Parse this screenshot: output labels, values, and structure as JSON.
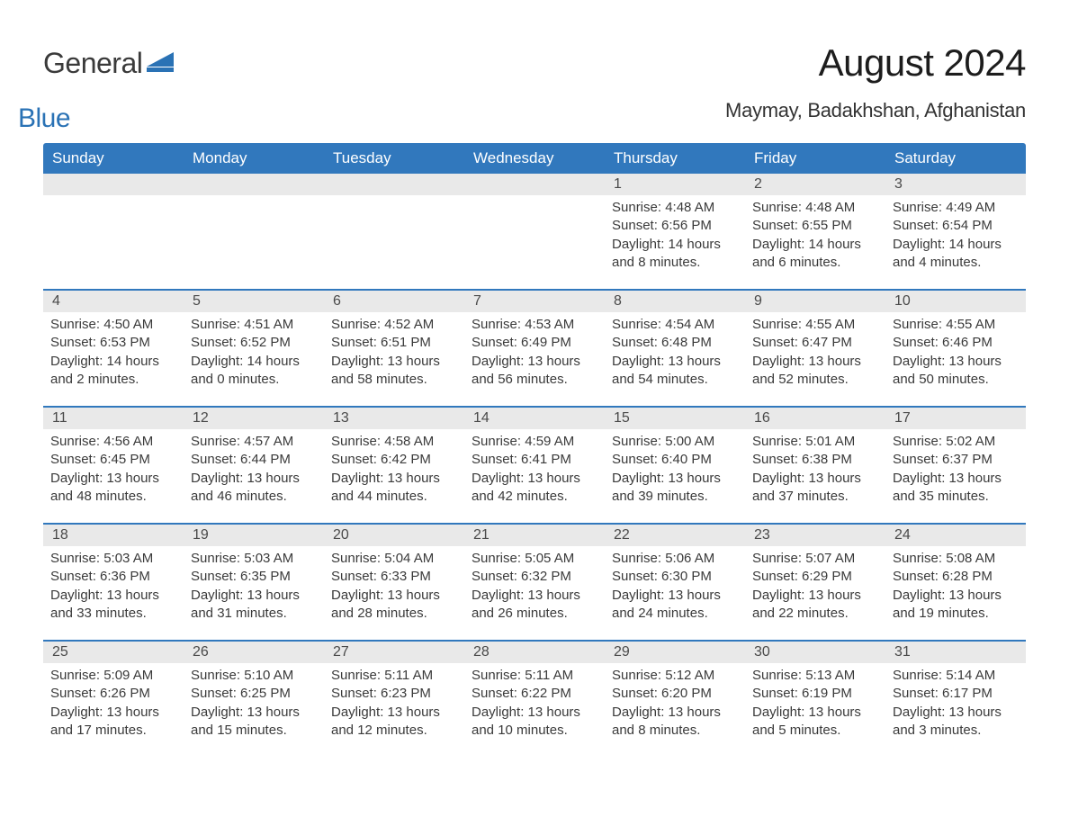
{
  "logo": {
    "part1": "General",
    "part2": "Blue"
  },
  "title": "August 2024",
  "location": "Maymay, Badakhshan, Afghanistan",
  "colors": {
    "header_bg": "#3178bd",
    "header_text": "#ffffff",
    "daynum_bg": "#e9e9e9",
    "border": "#3178bd",
    "body_text": "#3a3a3a",
    "logo_blue": "#2a72b5",
    "background": "#ffffff"
  },
  "typography": {
    "title_fontsize": 42,
    "location_fontsize": 22,
    "dayheader_fontsize": 17,
    "daynum_fontsize": 16,
    "detail_fontsize": 15
  },
  "day_headers": [
    "Sunday",
    "Monday",
    "Tuesday",
    "Wednesday",
    "Thursday",
    "Friday",
    "Saturday"
  ],
  "weeks": [
    [
      {
        "day": "",
        "sunrise": "",
        "sunset": "",
        "daylight": ""
      },
      {
        "day": "",
        "sunrise": "",
        "sunset": "",
        "daylight": ""
      },
      {
        "day": "",
        "sunrise": "",
        "sunset": "",
        "daylight": ""
      },
      {
        "day": "",
        "sunrise": "",
        "sunset": "",
        "daylight": ""
      },
      {
        "day": "1",
        "sunrise": "Sunrise: 4:48 AM",
        "sunset": "Sunset: 6:56 PM",
        "daylight": "Daylight: 14 hours and 8 minutes."
      },
      {
        "day": "2",
        "sunrise": "Sunrise: 4:48 AM",
        "sunset": "Sunset: 6:55 PM",
        "daylight": "Daylight: 14 hours and 6 minutes."
      },
      {
        "day": "3",
        "sunrise": "Sunrise: 4:49 AM",
        "sunset": "Sunset: 6:54 PM",
        "daylight": "Daylight: 14 hours and 4 minutes."
      }
    ],
    [
      {
        "day": "4",
        "sunrise": "Sunrise: 4:50 AM",
        "sunset": "Sunset: 6:53 PM",
        "daylight": "Daylight: 14 hours and 2 minutes."
      },
      {
        "day": "5",
        "sunrise": "Sunrise: 4:51 AM",
        "sunset": "Sunset: 6:52 PM",
        "daylight": "Daylight: 14 hours and 0 minutes."
      },
      {
        "day": "6",
        "sunrise": "Sunrise: 4:52 AM",
        "sunset": "Sunset: 6:51 PM",
        "daylight": "Daylight: 13 hours and 58 minutes."
      },
      {
        "day": "7",
        "sunrise": "Sunrise: 4:53 AM",
        "sunset": "Sunset: 6:49 PM",
        "daylight": "Daylight: 13 hours and 56 minutes."
      },
      {
        "day": "8",
        "sunrise": "Sunrise: 4:54 AM",
        "sunset": "Sunset: 6:48 PM",
        "daylight": "Daylight: 13 hours and 54 minutes."
      },
      {
        "day": "9",
        "sunrise": "Sunrise: 4:55 AM",
        "sunset": "Sunset: 6:47 PM",
        "daylight": "Daylight: 13 hours and 52 minutes."
      },
      {
        "day": "10",
        "sunrise": "Sunrise: 4:55 AM",
        "sunset": "Sunset: 6:46 PM",
        "daylight": "Daylight: 13 hours and 50 minutes."
      }
    ],
    [
      {
        "day": "11",
        "sunrise": "Sunrise: 4:56 AM",
        "sunset": "Sunset: 6:45 PM",
        "daylight": "Daylight: 13 hours and 48 minutes."
      },
      {
        "day": "12",
        "sunrise": "Sunrise: 4:57 AM",
        "sunset": "Sunset: 6:44 PM",
        "daylight": "Daylight: 13 hours and 46 minutes."
      },
      {
        "day": "13",
        "sunrise": "Sunrise: 4:58 AM",
        "sunset": "Sunset: 6:42 PM",
        "daylight": "Daylight: 13 hours and 44 minutes."
      },
      {
        "day": "14",
        "sunrise": "Sunrise: 4:59 AM",
        "sunset": "Sunset: 6:41 PM",
        "daylight": "Daylight: 13 hours and 42 minutes."
      },
      {
        "day": "15",
        "sunrise": "Sunrise: 5:00 AM",
        "sunset": "Sunset: 6:40 PM",
        "daylight": "Daylight: 13 hours and 39 minutes."
      },
      {
        "day": "16",
        "sunrise": "Sunrise: 5:01 AM",
        "sunset": "Sunset: 6:38 PM",
        "daylight": "Daylight: 13 hours and 37 minutes."
      },
      {
        "day": "17",
        "sunrise": "Sunrise: 5:02 AM",
        "sunset": "Sunset: 6:37 PM",
        "daylight": "Daylight: 13 hours and 35 minutes."
      }
    ],
    [
      {
        "day": "18",
        "sunrise": "Sunrise: 5:03 AM",
        "sunset": "Sunset: 6:36 PM",
        "daylight": "Daylight: 13 hours and 33 minutes."
      },
      {
        "day": "19",
        "sunrise": "Sunrise: 5:03 AM",
        "sunset": "Sunset: 6:35 PM",
        "daylight": "Daylight: 13 hours and 31 minutes."
      },
      {
        "day": "20",
        "sunrise": "Sunrise: 5:04 AM",
        "sunset": "Sunset: 6:33 PM",
        "daylight": "Daylight: 13 hours and 28 minutes."
      },
      {
        "day": "21",
        "sunrise": "Sunrise: 5:05 AM",
        "sunset": "Sunset: 6:32 PM",
        "daylight": "Daylight: 13 hours and 26 minutes."
      },
      {
        "day": "22",
        "sunrise": "Sunrise: 5:06 AM",
        "sunset": "Sunset: 6:30 PM",
        "daylight": "Daylight: 13 hours and 24 minutes."
      },
      {
        "day": "23",
        "sunrise": "Sunrise: 5:07 AM",
        "sunset": "Sunset: 6:29 PM",
        "daylight": "Daylight: 13 hours and 22 minutes."
      },
      {
        "day": "24",
        "sunrise": "Sunrise: 5:08 AM",
        "sunset": "Sunset: 6:28 PM",
        "daylight": "Daylight: 13 hours and 19 minutes."
      }
    ],
    [
      {
        "day": "25",
        "sunrise": "Sunrise: 5:09 AM",
        "sunset": "Sunset: 6:26 PM",
        "daylight": "Daylight: 13 hours and 17 minutes."
      },
      {
        "day": "26",
        "sunrise": "Sunrise: 5:10 AM",
        "sunset": "Sunset: 6:25 PM",
        "daylight": "Daylight: 13 hours and 15 minutes."
      },
      {
        "day": "27",
        "sunrise": "Sunrise: 5:11 AM",
        "sunset": "Sunset: 6:23 PM",
        "daylight": "Daylight: 13 hours and 12 minutes."
      },
      {
        "day": "28",
        "sunrise": "Sunrise: 5:11 AM",
        "sunset": "Sunset: 6:22 PM",
        "daylight": "Daylight: 13 hours and 10 minutes."
      },
      {
        "day": "29",
        "sunrise": "Sunrise: 5:12 AM",
        "sunset": "Sunset: 6:20 PM",
        "daylight": "Daylight: 13 hours and 8 minutes."
      },
      {
        "day": "30",
        "sunrise": "Sunrise: 5:13 AM",
        "sunset": "Sunset: 6:19 PM",
        "daylight": "Daylight: 13 hours and 5 minutes."
      },
      {
        "day": "31",
        "sunrise": "Sunrise: 5:14 AM",
        "sunset": "Sunset: 6:17 PM",
        "daylight": "Daylight: 13 hours and 3 minutes."
      }
    ]
  ]
}
